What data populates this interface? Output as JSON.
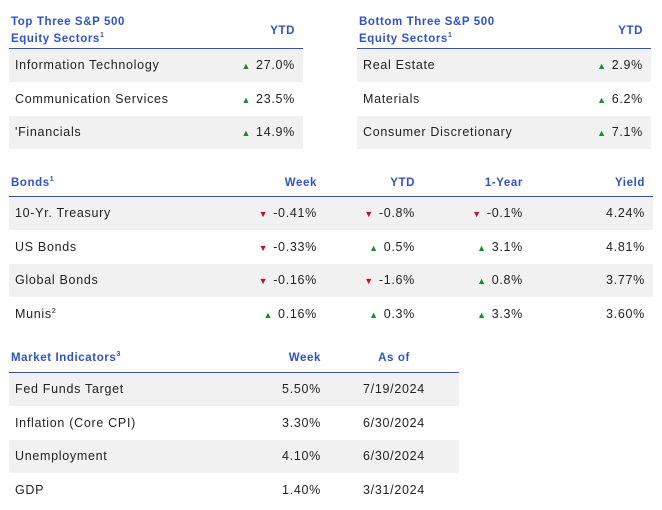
{
  "top_sectors": {
    "title_line1": "Top Three S&P 500",
    "title_line2": "Equity Sectors",
    "title_sup": "1",
    "col": "YTD",
    "rows": [
      {
        "name": "Information Technology",
        "prefix": "",
        "dir": "up",
        "value": "27.0%"
      },
      {
        "name": "Communication Services",
        "prefix": "",
        "dir": "up",
        "value": "23.5%"
      },
      {
        "name": "Financials",
        "prefix": "'",
        "dir": "up",
        "value": "14.9%"
      }
    ]
  },
  "bottom_sectors": {
    "title_line1": "Bottom Three S&P 500",
    "title_line2": "Equity Sectors",
    "title_sup": "1",
    "col": "YTD",
    "rows": [
      {
        "name": "Real Estate",
        "dir": "up",
        "value": "2.9%"
      },
      {
        "name": "Materials",
        "dir": "up",
        "value": "6.2%"
      },
      {
        "name": "Consumer Discretionary",
        "dir": "up",
        "value": "7.1%"
      }
    ]
  },
  "bonds": {
    "title": "Bonds",
    "title_sup": "1",
    "cols": [
      "Week",
      "YTD",
      "1-Year",
      "Yield"
    ],
    "rows": [
      {
        "name": "10-Yr. Treasury",
        "sup": "",
        "week": {
          "dir": "down",
          "v": "-0.41%"
        },
        "ytd": {
          "dir": "down",
          "v": "-0.8%"
        },
        "year": {
          "dir": "down",
          "v": "-0.1%"
        },
        "yield": "4.24%"
      },
      {
        "name": "US Bonds",
        "sup": "",
        "week": {
          "dir": "down",
          "v": "-0.33%"
        },
        "ytd": {
          "dir": "up",
          "v": "0.5%"
        },
        "year": {
          "dir": "up",
          "v": "3.1%"
        },
        "yield": "4.81%"
      },
      {
        "name": "Global Bonds",
        "sup": "",
        "week": {
          "dir": "down",
          "v": "-0.16%"
        },
        "ytd": {
          "dir": "down",
          "v": "-1.6%"
        },
        "year": {
          "dir": "up",
          "v": "0.8%"
        },
        "yield": "3.77%"
      },
      {
        "name": "Munis",
        "sup": "2",
        "week": {
          "dir": "up",
          "v": "0.16%"
        },
        "ytd": {
          "dir": "up",
          "v": "0.3%"
        },
        "year": {
          "dir": "up",
          "v": "3.3%"
        },
        "yield": "3.60%"
      }
    ]
  },
  "market": {
    "title": "Market Indicators",
    "title_sup": "3",
    "cols": [
      "Week",
      "As of"
    ],
    "rows": [
      {
        "name": "Fed Funds Target",
        "week": "5.50%",
        "asof": "7/19/2024"
      },
      {
        "name": "Inflation (Core CPI)",
        "week": "3.30%",
        "asof": "6/30/2024"
      },
      {
        "name": "Unemployment",
        "week": "4.10%",
        "asof": "6/30/2024"
      },
      {
        "name": "GDP",
        "week": "1.40%",
        "asof": "3/31/2024"
      }
    ]
  },
  "colors": {
    "accent": "#2f53c7",
    "up": "#1e8a2e",
    "down": "#c8102e",
    "shade": "#f1f1f1"
  },
  "icons": {
    "up": "triangle-up-icon",
    "down": "triangle-down-icon"
  }
}
